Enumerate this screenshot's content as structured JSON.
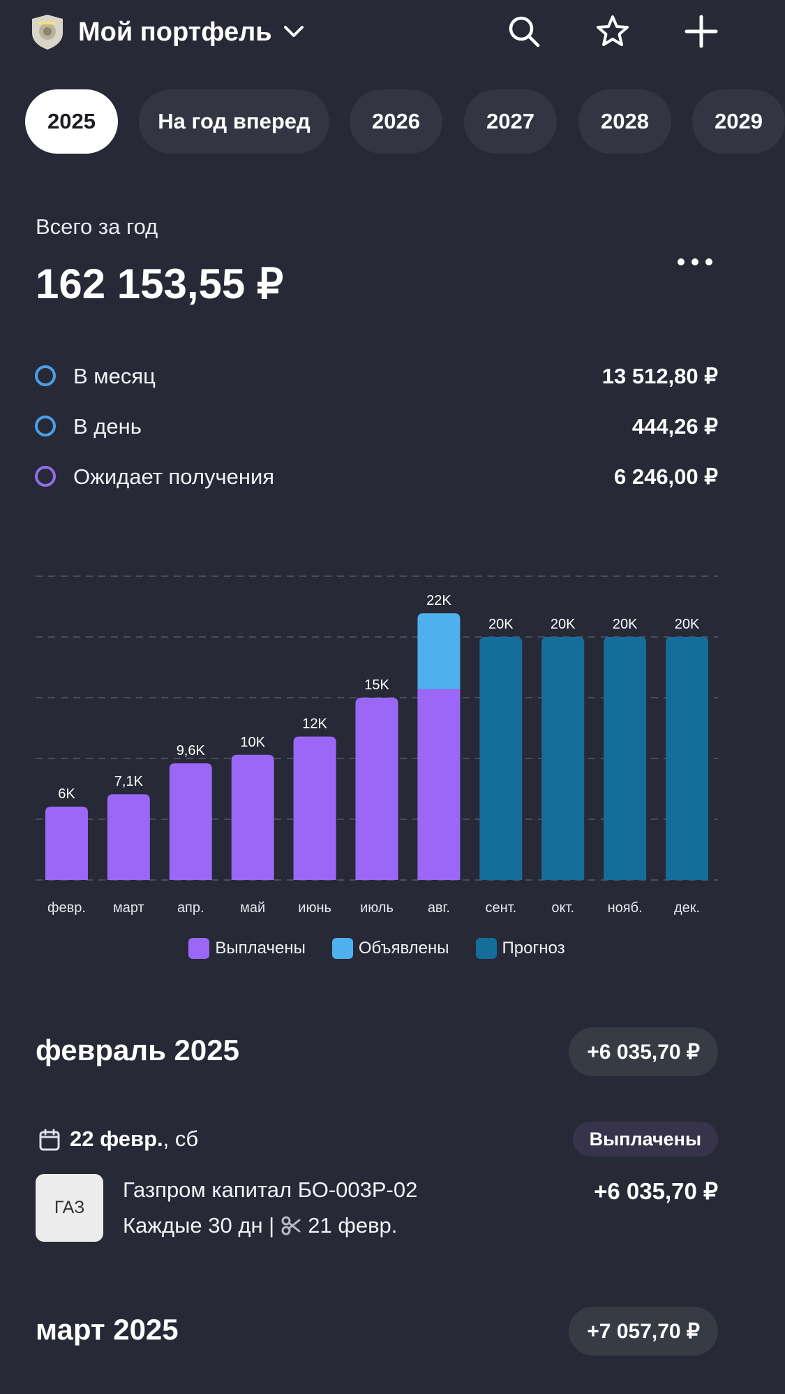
{
  "header": {
    "title": "Мой портфель",
    "icons": [
      "logo-icon",
      "chevron-down-icon",
      "search-icon",
      "star-icon",
      "plus-icon"
    ]
  },
  "year_tabs": [
    "2025",
    "На год вперед",
    "2026",
    "2027",
    "2028",
    "2029"
  ],
  "summary": {
    "label": "Всего за год",
    "total": "162 153,55 ₽"
  },
  "metrics": [
    {
      "label": "В месяц",
      "value": "13 512,80 ₽",
      "color": "#4b9fe8"
    },
    {
      "label": "В день",
      "value": "444,26 ₽",
      "color": "#4b9fe8"
    },
    {
      "label": "Ожидает получения",
      "value": "6 246,00 ₽",
      "color": "#8f6ee6"
    }
  ],
  "chart_data": {
    "type": "bar",
    "stacked": true,
    "categories": [
      "февр.",
      "март",
      "апр.",
      "май",
      "июнь",
      "июль",
      "авг.",
      "сент.",
      "окт.",
      "нояб.",
      "дек."
    ],
    "bar_labels": [
      "6K",
      "7,1K",
      "9,6K",
      "10K",
      "12K",
      "15K",
      "22K",
      "20K",
      "20K",
      "20K",
      "20K"
    ],
    "series": [
      {
        "name": "Выплачены",
        "color": "#9b67f7",
        "values": [
          6035.7,
          7057.7,
          9600,
          10300,
          11800,
          15000,
          15700,
          0,
          0,
          0,
          0
        ]
      },
      {
        "name": "Объявлены",
        "color": "#4fb0ee",
        "values": [
          0,
          0,
          0,
          0,
          0,
          0,
          6246,
          0,
          0,
          0,
          0
        ]
      },
      {
        "name": "Прогноз",
        "color": "#146d9a",
        "values": [
          0,
          0,
          0,
          0,
          0,
          0,
          0,
          20000,
          20000,
          20000,
          20000
        ]
      }
    ],
    "ylim": [
      0,
      25000
    ],
    "grid": true,
    "legend": "bottom"
  },
  "months": [
    {
      "title": "февраль 2025",
      "amount": "+6 035,70 ₽"
    },
    {
      "title": "март 2025",
      "amount": "+7 057,70 ₽"
    }
  ],
  "payment": {
    "date": "22 февр.",
    "weekday": ", сб",
    "status": "Выплачены",
    "logo_text": "ГАЗ",
    "name": "Газпром капитал БО-003Р-02",
    "frequency": "Каждые 30 дн |",
    "record_date": "21 февр.",
    "amount": "+6 035,70 ₽"
  }
}
